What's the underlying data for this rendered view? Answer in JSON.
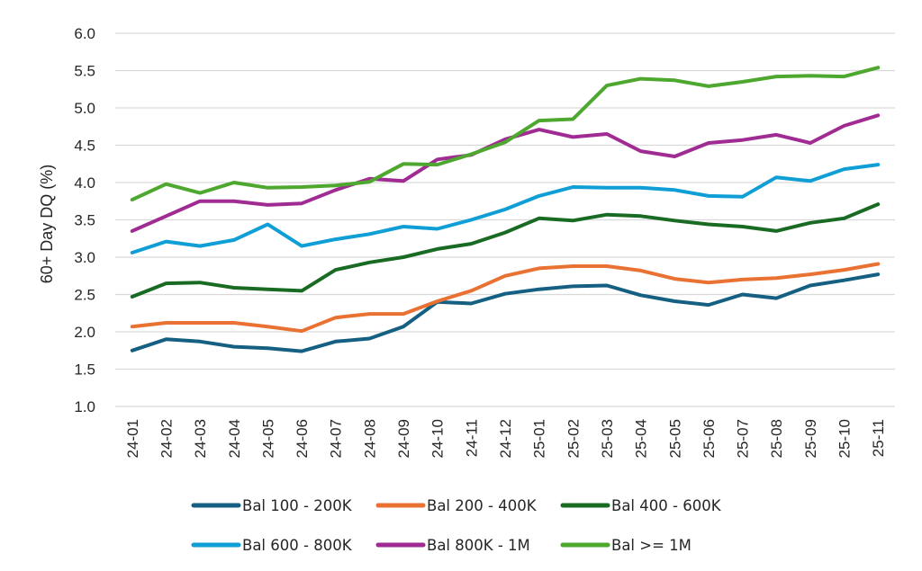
{
  "chart_data": {
    "type": "line",
    "title": "",
    "xlabel": "",
    "ylabel": "60+ Day DQ (%)",
    "ylim": [
      1.0,
      6.0
    ],
    "yticks": [
      "1.0",
      "1.5",
      "2.0",
      "2.5",
      "3.0",
      "3.5",
      "4.0",
      "4.5",
      "5.0",
      "5.5",
      "6.0"
    ],
    "grid": true,
    "legend_position": "bottom",
    "categories": [
      "24-01",
      "24-02",
      "24-03",
      "24-04",
      "24-05",
      "24-06",
      "24-07",
      "24-08",
      "24-09",
      "24-10",
      "24-11",
      "24-12",
      "25-01",
      "25-02",
      "25-03",
      "25-04",
      "25-05",
      "25-06",
      "25-07",
      "25-08",
      "25-09",
      "25-10",
      "25-11"
    ],
    "series": [
      {
        "name": "Bal 100 - 200K",
        "color": "#156082",
        "values": [
          1.75,
          1.9,
          1.87,
          1.8,
          1.78,
          1.74,
          1.87,
          1.91,
          2.07,
          2.4,
          2.38,
          2.51,
          2.57,
          2.61,
          2.62,
          2.49,
          2.41,
          2.36,
          2.5,
          2.45,
          2.62,
          2.69,
          2.77
        ]
      },
      {
        "name": "Bal 200 - 400K",
        "color": "#e97132",
        "values": [
          2.07,
          2.12,
          2.12,
          2.12,
          2.07,
          2.01,
          2.19,
          2.24,
          2.24,
          2.41,
          2.55,
          2.75,
          2.85,
          2.88,
          2.88,
          2.82,
          2.71,
          2.66,
          2.7,
          2.72,
          2.77,
          2.83,
          2.91
        ]
      },
      {
        "name": "Bal 400 - 600K",
        "color": "#196b24",
        "values": [
          2.47,
          2.65,
          2.66,
          2.59,
          2.57,
          2.55,
          2.83,
          2.93,
          3.0,
          3.11,
          3.18,
          3.33,
          3.52,
          3.49,
          3.57,
          3.55,
          3.49,
          3.44,
          3.41,
          3.35,
          3.46,
          3.52,
          3.71
        ]
      },
      {
        "name": "Bal 600 - 800K",
        "color": "#0f9ed5",
        "values": [
          3.06,
          3.21,
          3.15,
          3.23,
          3.44,
          3.15,
          3.24,
          3.31,
          3.41,
          3.38,
          3.5,
          3.64,
          3.82,
          3.94,
          3.93,
          3.93,
          3.9,
          3.82,
          3.81,
          4.07,
          4.02,
          4.18,
          4.24
        ]
      },
      {
        "name": "Bal 800K - 1M",
        "color": "#a02b93",
        "values": [
          3.35,
          3.55,
          3.75,
          3.75,
          3.7,
          3.72,
          3.9,
          4.05,
          4.02,
          4.31,
          4.37,
          4.58,
          4.71,
          4.61,
          4.65,
          4.42,
          4.35,
          4.53,
          4.57,
          4.64,
          4.53,
          4.76,
          4.9
        ]
      },
      {
        "name": "Bal >= 1M",
        "color": "#4ea72e",
        "values": [
          3.77,
          3.98,
          3.86,
          4.0,
          3.93,
          3.94,
          3.96,
          4.01,
          4.25,
          4.24,
          4.38,
          4.54,
          4.83,
          4.85,
          5.3,
          5.39,
          5.37,
          5.29,
          5.35,
          5.42,
          5.43,
          5.42,
          5.54
        ]
      }
    ]
  }
}
